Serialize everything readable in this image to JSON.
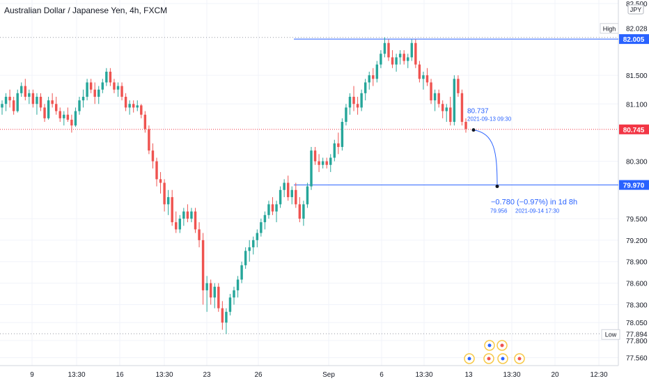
{
  "header": {
    "title": "Australian Dollar / Japanese Yen, 4h, FXCM"
  },
  "price_axis": {
    "currency_label": "JPY"
  },
  "chart_data": {
    "type": "candlestick",
    "symbol": "AUDJPY",
    "title": "Australian Dollar / Japanese Yen, 4h, FXCM",
    "ylim": [
      77.45,
      82.55
    ],
    "y_ticks": [
      "82.500",
      "81.500",
      "81.100",
      "80.300",
      "79.500",
      "79.200",
      "78.900",
      "78.600",
      "78.300",
      "78.050",
      "77.800",
      "77.560"
    ],
    "x_ticks": [
      "9",
      "13:30",
      "16",
      "13:30",
      "23",
      "26",
      "Sep",
      "6",
      "13:30",
      "13",
      "13:30",
      "20",
      "12:30"
    ],
    "markers": {
      "high": {
        "label": "High",
        "value": "82.028"
      },
      "low": {
        "label": "Low",
        "value": "77.894"
      }
    },
    "price_labels": [
      {
        "value": "82.005",
        "color": "#2962ff"
      },
      {
        "value": "80.745",
        "color": "#f23645"
      },
      {
        "value": "79.970",
        "color": "#2962ff"
      }
    ],
    "projection": {
      "start": {
        "price": "80.737",
        "time": "2021-09-13 09:30"
      },
      "end": {
        "price": "79.956",
        "time": "2021-09-14  17:30"
      },
      "change": "−0.780 (−0.97%) in 1d 8h"
    },
    "candles": [
      [
        81.05,
        81.15,
        80.95,
        81.1
      ],
      [
        81.1,
        81.25,
        81.0,
        81.2
      ],
      [
        81.2,
        81.3,
        81.05,
        81.15
      ],
      [
        81.15,
        81.2,
        80.95,
        81.0
      ],
      [
        81.0,
        81.3,
        80.98,
        81.25
      ],
      [
        81.25,
        81.4,
        81.2,
        81.35
      ],
      [
        81.35,
        81.45,
        81.15,
        81.2
      ],
      [
        81.2,
        81.3,
        81.1,
        81.25
      ],
      [
        81.25,
        81.3,
        81.05,
        81.1
      ],
      [
        81.1,
        81.25,
        80.95,
        81.2
      ],
      [
        81.2,
        81.25,
        81.0,
        81.05
      ],
      [
        81.05,
        81.1,
        80.85,
        80.9
      ],
      [
        80.9,
        81.2,
        80.88,
        81.15
      ],
      [
        81.15,
        81.25,
        81.05,
        81.1
      ],
      [
        81.1,
        81.2,
        80.95,
        81.0
      ],
      [
        81.0,
        81.05,
        80.85,
        80.9
      ],
      [
        80.9,
        81.0,
        80.8,
        80.95
      ],
      [
        80.95,
        81.05,
        80.85,
        80.88
      ],
      [
        80.88,
        80.95,
        80.7,
        80.8
      ],
      [
        80.8,
        81.05,
        80.78,
        81.0
      ],
      [
        81.0,
        81.2,
        80.95,
        81.15
      ],
      [
        81.15,
        81.3,
        81.05,
        81.2
      ],
      [
        81.2,
        81.45,
        81.15,
        81.4
      ],
      [
        81.4,
        81.45,
        81.25,
        81.3
      ],
      [
        81.3,
        81.4,
        81.1,
        81.2
      ],
      [
        81.2,
        81.35,
        81.1,
        81.3
      ],
      [
        81.3,
        81.45,
        81.25,
        81.4
      ],
      [
        81.4,
        81.6,
        81.35,
        81.55
      ],
      [
        81.55,
        81.6,
        81.35,
        81.4
      ],
      [
        81.4,
        81.45,
        81.25,
        81.3
      ],
      [
        81.3,
        81.4,
        81.2,
        81.35
      ],
      [
        81.35,
        81.4,
        81.15,
        81.2
      ],
      [
        81.2,
        81.25,
        81.0,
        81.05
      ],
      [
        81.05,
        81.15,
        80.95,
        81.1
      ],
      [
        81.1,
        81.15,
        80.98,
        81.05
      ],
      [
        81.05,
        81.15,
        81.0,
        81.08
      ],
      [
        81.08,
        81.1,
        80.9,
        80.95
      ],
      [
        80.95,
        81.0,
        80.7,
        80.75
      ],
      [
        80.75,
        80.8,
        80.4,
        80.45
      ],
      [
        80.45,
        80.55,
        80.2,
        80.3
      ],
      [
        80.3,
        80.35,
        79.95,
        80.05
      ],
      [
        80.05,
        80.15,
        79.85,
        80.0
      ],
      [
        80.0,
        80.05,
        79.6,
        79.7
      ],
      [
        79.7,
        79.9,
        79.55,
        79.8
      ],
      [
        79.8,
        79.9,
        79.4,
        79.45
      ],
      [
        79.45,
        79.6,
        79.3,
        79.35
      ],
      [
        79.35,
        79.55,
        79.3,
        79.5
      ],
      [
        79.5,
        79.65,
        79.4,
        79.6
      ],
      [
        79.6,
        79.7,
        79.45,
        79.5
      ],
      [
        79.5,
        79.65,
        79.45,
        79.6
      ],
      [
        79.6,
        79.65,
        79.3,
        79.35
      ],
      [
        79.35,
        79.45,
        79.1,
        79.2
      ],
      [
        79.2,
        79.3,
        78.3,
        78.5
      ],
      [
        78.5,
        78.7,
        78.2,
        78.6
      ],
      [
        78.6,
        78.65,
        78.3,
        78.4
      ],
      [
        78.4,
        78.6,
        78.25,
        78.55
      ],
      [
        78.55,
        78.6,
        78.2,
        78.25
      ],
      [
        78.25,
        78.35,
        77.95,
        78.05
      ],
      [
        78.05,
        78.25,
        77.89,
        78.2
      ],
      [
        78.2,
        78.45,
        78.15,
        78.4
      ],
      [
        78.4,
        78.55,
        78.3,
        78.5
      ],
      [
        78.5,
        78.7,
        78.4,
        78.65
      ],
      [
        78.65,
        78.9,
        78.6,
        78.85
      ],
      [
        78.85,
        79.1,
        78.8,
        79.05
      ],
      [
        79.05,
        79.2,
        78.9,
        79.1
      ],
      [
        79.1,
        79.25,
        79.0,
        79.2
      ],
      [
        79.2,
        79.35,
        79.1,
        79.3
      ],
      [
        79.3,
        79.5,
        79.25,
        79.45
      ],
      [
        79.45,
        79.6,
        79.35,
        79.55
      ],
      [
        79.55,
        79.75,
        79.5,
        79.7
      ],
      [
        79.7,
        79.8,
        79.55,
        79.6
      ],
      [
        79.6,
        79.75,
        79.45,
        79.7
      ],
      [
        79.7,
        79.95,
        79.65,
        79.9
      ],
      [
        79.9,
        80.05,
        79.8,
        80.0
      ],
      [
        80.0,
        80.1,
        79.75,
        79.8
      ],
      [
        79.8,
        79.95,
        79.7,
        79.9
      ],
      [
        79.9,
        80.0,
        79.65,
        79.7
      ],
      [
        79.7,
        79.8,
        79.45,
        79.5
      ],
      [
        79.5,
        79.75,
        79.4,
        79.7
      ],
      [
        79.7,
        80.0,
        79.65,
        79.95
      ],
      [
        79.95,
        80.5,
        79.9,
        80.45
      ],
      [
        80.45,
        80.5,
        80.25,
        80.3
      ],
      [
        80.3,
        80.4,
        80.15,
        80.25
      ],
      [
        80.25,
        80.35,
        80.2,
        80.3
      ],
      [
        80.3,
        80.35,
        80.2,
        80.25
      ],
      [
        80.25,
        80.4,
        80.15,
        80.35
      ],
      [
        80.35,
        80.6,
        80.3,
        80.55
      ],
      [
        80.55,
        80.7,
        80.4,
        80.5
      ],
      [
        80.5,
        80.9,
        80.45,
        80.85
      ],
      [
        80.85,
        81.1,
        80.8,
        81.05
      ],
      [
        81.05,
        81.25,
        80.95,
        81.2
      ],
      [
        81.2,
        81.35,
        81.0,
        81.1
      ],
      [
        81.1,
        81.2,
        80.95,
        81.05
      ],
      [
        81.05,
        81.3,
        81.0,
        81.25
      ],
      [
        81.25,
        81.45,
        81.15,
        81.4
      ],
      [
        81.4,
        81.55,
        81.3,
        81.5
      ],
      [
        81.5,
        81.6,
        81.35,
        81.45
      ],
      [
        81.45,
        81.7,
        81.4,
        81.65
      ],
      [
        81.65,
        81.85,
        81.6,
        81.8
      ],
      [
        81.8,
        82.03,
        81.75,
        81.95
      ],
      [
        81.95,
        82.0,
        81.7,
        81.75
      ],
      [
        81.75,
        81.85,
        81.6,
        81.65
      ],
      [
        81.65,
        81.8,
        81.55,
        81.75
      ],
      [
        81.75,
        81.85,
        81.65,
        81.8
      ],
      [
        81.8,
        81.85,
        81.65,
        81.7
      ],
      [
        81.7,
        81.8,
        81.6,
        81.75
      ],
      [
        81.75,
        82.0,
        81.7,
        81.95
      ],
      [
        81.95,
        82.0,
        81.6,
        81.65
      ],
      [
        81.65,
        81.7,
        81.4,
        81.45
      ],
      [
        81.45,
        81.55,
        81.3,
        81.5
      ],
      [
        81.5,
        81.6,
        81.35,
        81.4
      ],
      [
        81.4,
        81.45,
        81.1,
        81.15
      ],
      [
        81.15,
        81.3,
        81.0,
        81.25
      ],
      [
        81.25,
        81.3,
        81.05,
        81.1
      ],
      [
        81.1,
        81.15,
        80.9,
        81.0
      ],
      [
        81.0,
        81.1,
        80.85,
        81.05
      ],
      [
        81.05,
        81.2,
        80.8,
        80.85
      ],
      [
        80.85,
        81.5,
        80.8,
        81.45
      ],
      [
        81.45,
        81.5,
        81.2,
        81.25
      ],
      [
        81.25,
        81.3,
        80.8,
        80.85
      ],
      [
        80.85,
        80.9,
        80.7,
        80.75
      ]
    ]
  },
  "colors": {
    "up": "#26a69a",
    "down": "#ef5350",
    "blue": "#2962ff",
    "red_line": "#f23645",
    "grid": "#f0f3fa"
  },
  "events": {
    "icons": [
      "us-flag-icon",
      "australia-flag-icon",
      "japan-flag-icon",
      "uk-flag-icon"
    ]
  }
}
